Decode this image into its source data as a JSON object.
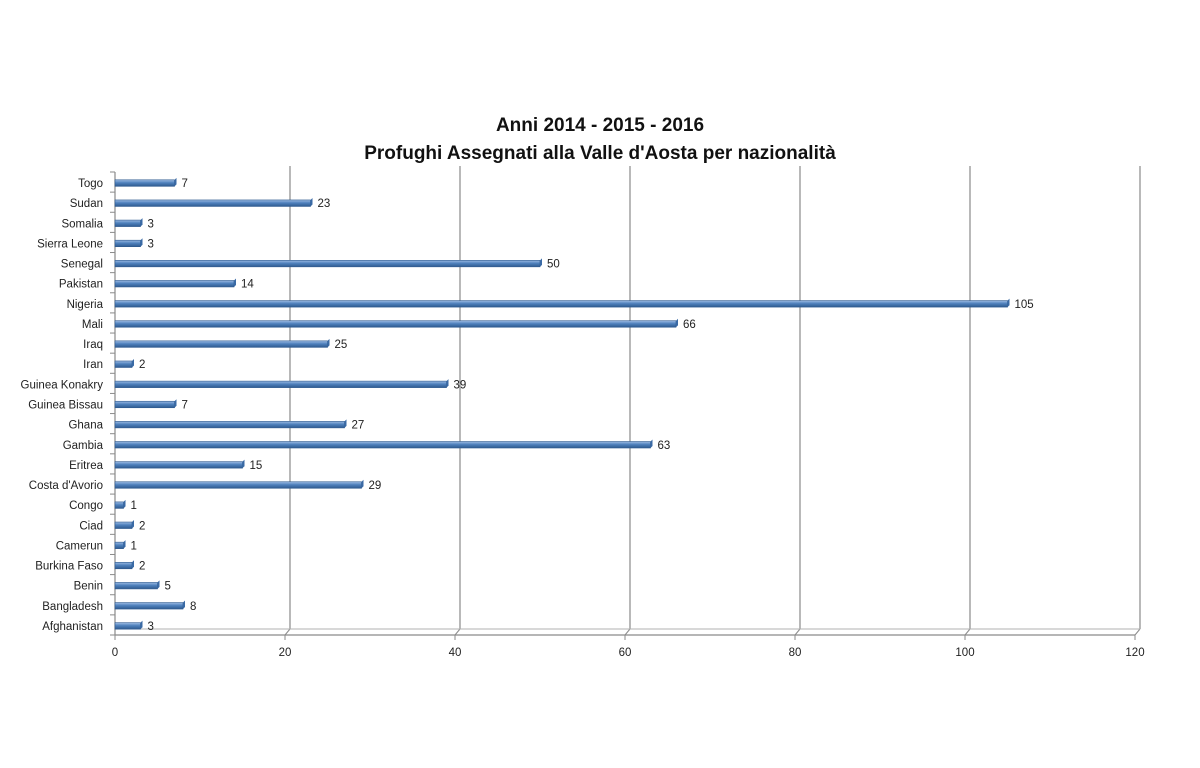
{
  "chart_data": {
    "type": "bar",
    "orientation": "horizontal",
    "title": [
      "Anni 2014 - 2015 - 2016",
      "Profughi Assegnati alla Valle d'Aosta per nazionalità"
    ],
    "categories": [
      "Togo",
      "Sudan",
      "Somalia",
      "Sierra Leone",
      "Senegal",
      "Pakistan",
      "Nigeria",
      "Mali",
      "Iraq",
      "Iran",
      "Guinea Konakry",
      "Guinea Bissau",
      "Ghana",
      "Gambia",
      "Eritrea",
      "Costa d'Avorio",
      "Congo",
      "Ciad",
      "Camerun",
      "Burkina Faso",
      "Benin",
      "Bangladesh",
      "Afghanistan"
    ],
    "values": [
      7,
      23,
      3,
      3,
      50,
      14,
      105,
      66,
      25,
      2,
      39,
      7,
      27,
      63,
      15,
      29,
      1,
      2,
      1,
      2,
      5,
      8,
      3
    ],
    "xlim": [
      0,
      120
    ],
    "xticks": [
      0,
      20,
      40,
      60,
      80,
      100,
      120
    ],
    "xlabel": "",
    "ylabel": "",
    "grid": true,
    "data_labels": true,
    "legend": "none",
    "bar_color": "#4f81bd"
  }
}
